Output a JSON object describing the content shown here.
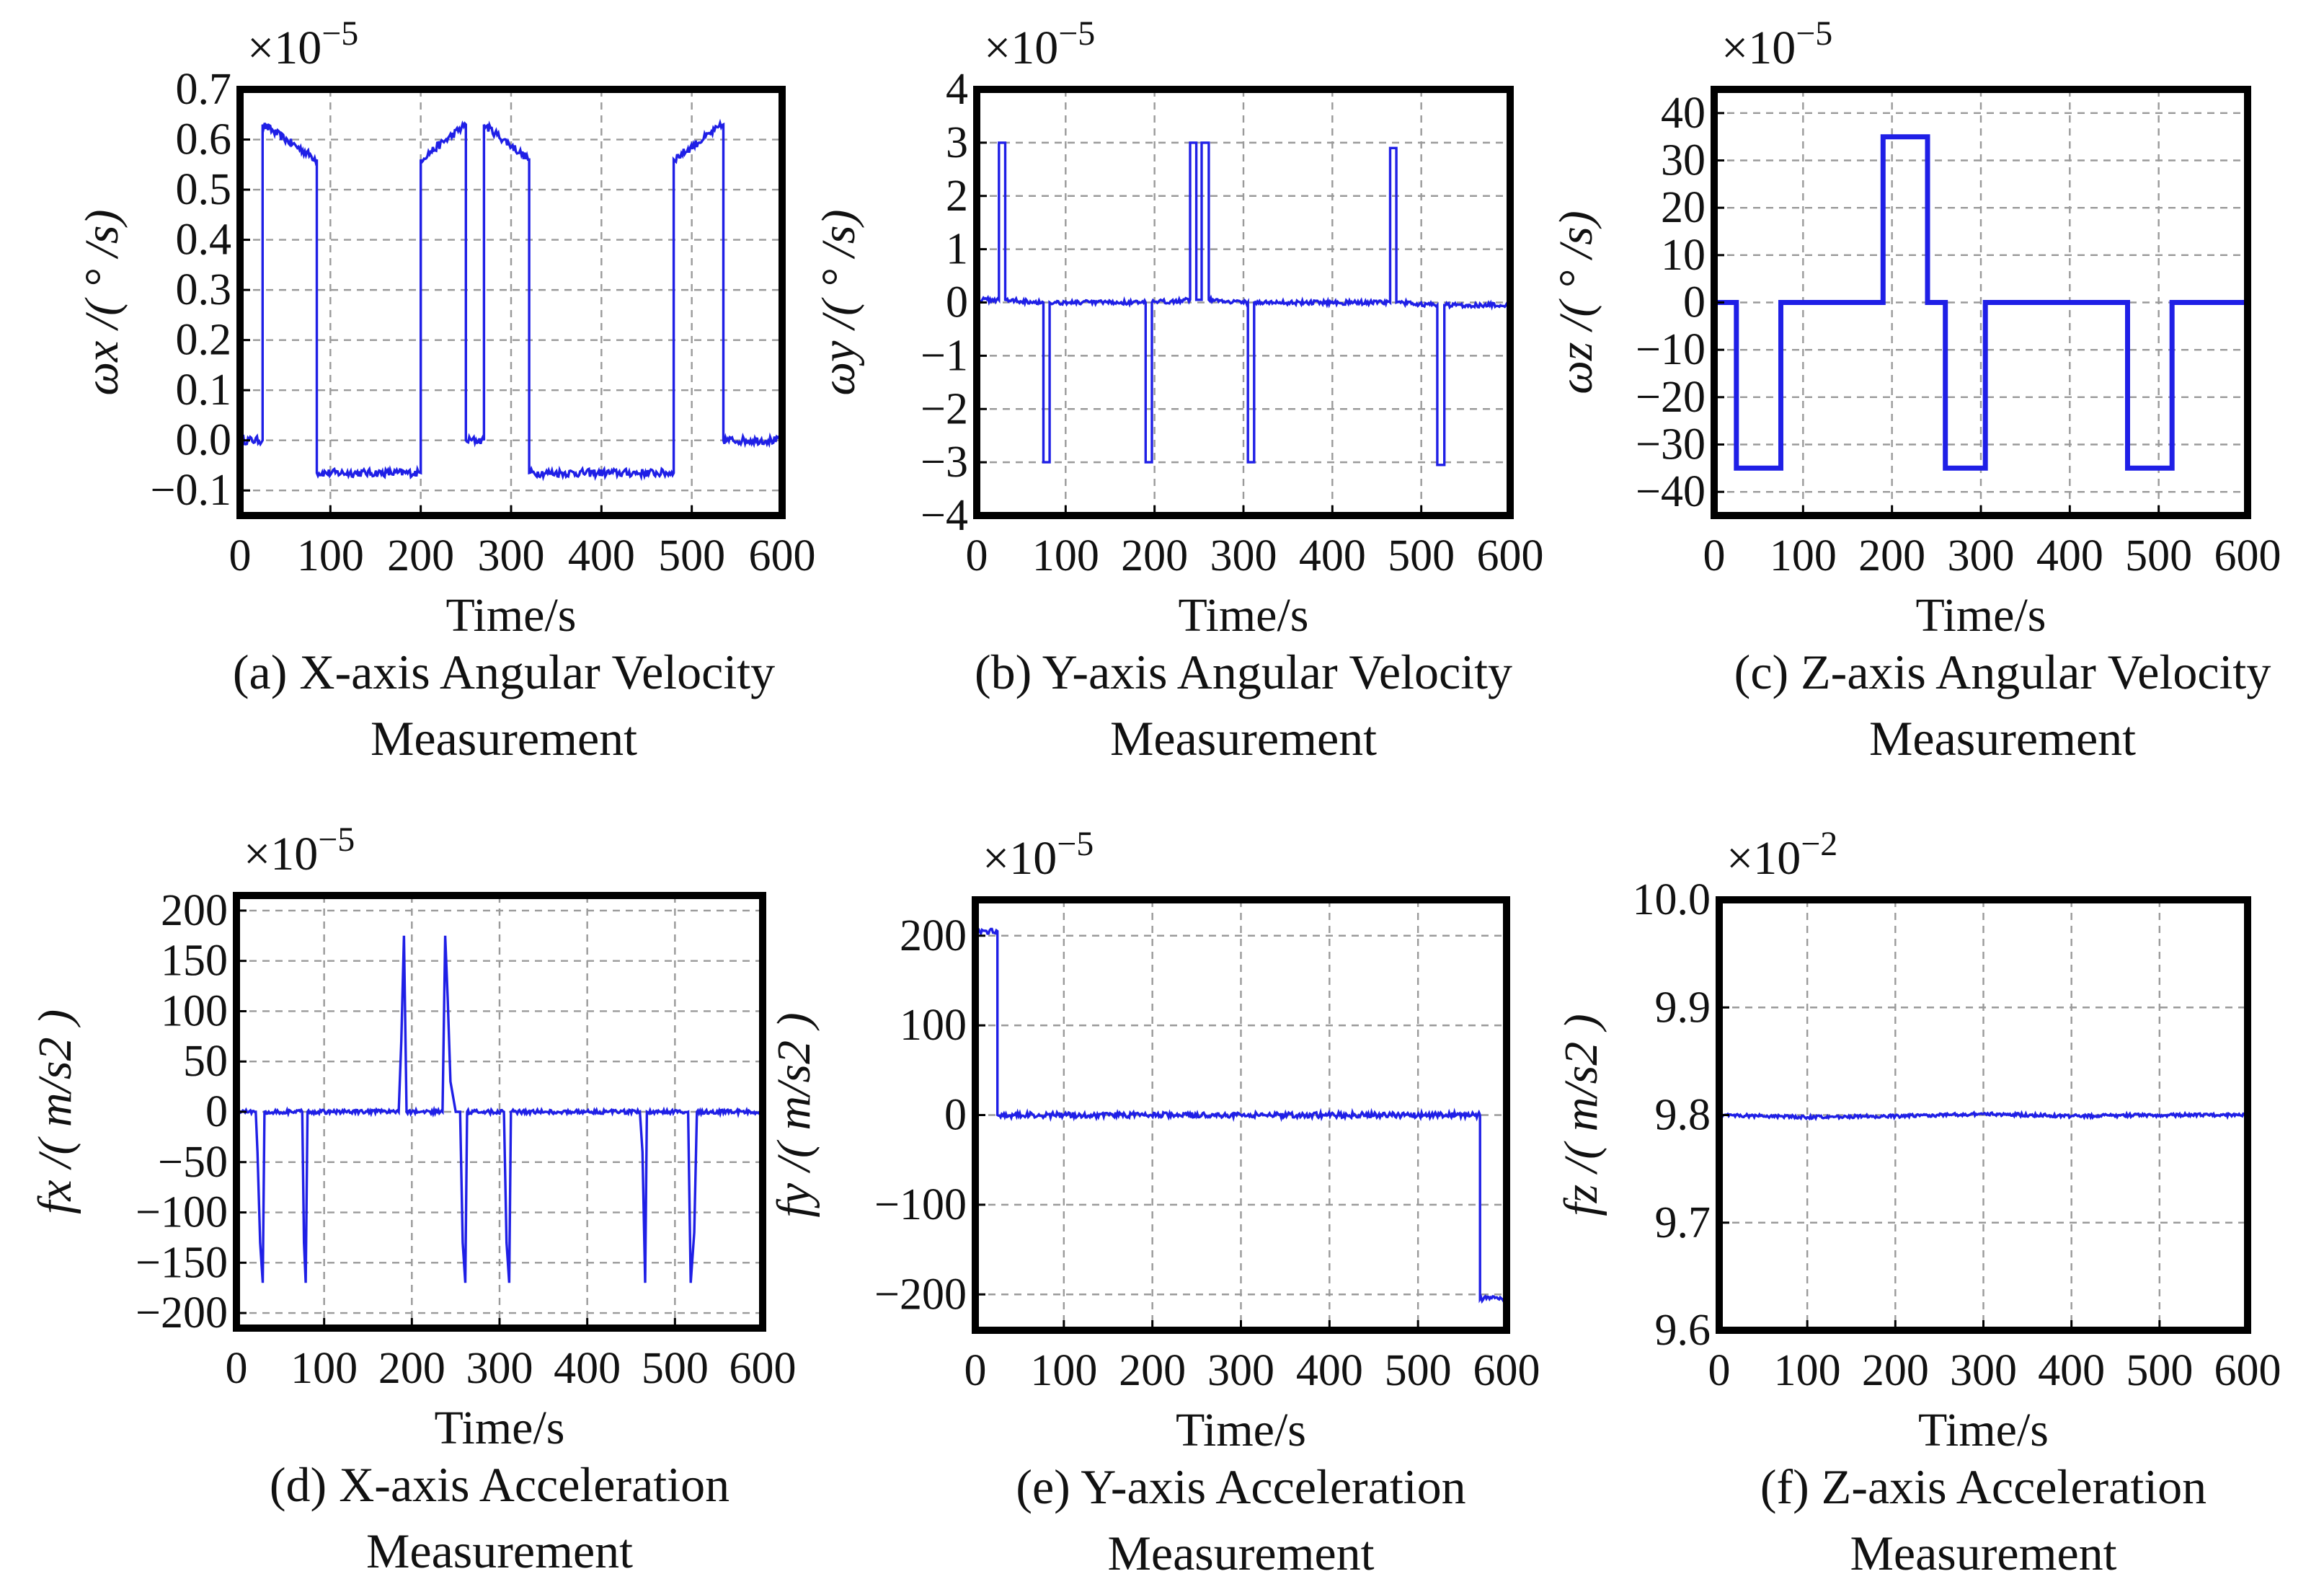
{
  "chart_data": [
    {
      "id": "a",
      "type": "line",
      "caption": [
        "(a) X-axis Angular Velocity",
        "Measurement"
      ],
      "xlabel": "Time/s",
      "ylabel": "ωx /( ° /s)",
      "multiplier": "×10",
      "multiplier_exp": "−5",
      "xlim": [
        0,
        600
      ],
      "ylim": [
        -0.15,
        0.7
      ],
      "xticks": [
        0,
        100,
        200,
        300,
        400,
        500,
        600
      ],
      "xtick_labels": [
        "0",
        "100",
        "200",
        "300",
        "400",
        "500",
        "600"
      ],
      "yticks": [
        -0.1,
        0.0,
        0.1,
        0.2,
        0.3,
        0.4,
        0.5,
        0.6,
        0.7
      ],
      "ytick_labels": [
        "−0.1",
        "0.0",
        "0.1",
        "0.2",
        "0.3",
        "0.4",
        "0.5",
        "0.6",
        "0.7"
      ],
      "series": [
        {
          "name": "ωx",
          "points": [
            [
              0,
              0.0
            ],
            [
              25,
              0.0
            ],
            [
              25,
              0.63
            ],
            [
              85,
              0.56
            ],
            [
              85,
              -0.065
            ],
            [
              200,
              -0.065
            ],
            [
              200,
              0.56
            ],
            [
              250,
              0.63
            ],
            [
              250,
              0.0
            ],
            [
              270,
              0.0
            ],
            [
              270,
              0.63
            ],
            [
              320,
              0.56
            ],
            [
              320,
              -0.065
            ],
            [
              480,
              -0.065
            ],
            [
              480,
              0.56
            ],
            [
              535,
              0.63
            ],
            [
              535,
              0.0
            ],
            [
              600,
              0.0
            ]
          ]
        }
      ]
    },
    {
      "id": "b",
      "type": "line",
      "caption": [
        "(b) Y-axis Angular Velocity",
        "Measurement"
      ],
      "xlabel": "Time/s",
      "ylabel": "ωy /( ° /s)",
      "multiplier": "×10",
      "multiplier_exp": "−5",
      "xlim": [
        0,
        600
      ],
      "ylim": [
        -4,
        4
      ],
      "xticks": [
        0,
        100,
        200,
        300,
        400,
        500,
        600
      ],
      "xtick_labels": [
        "0",
        "100",
        "200",
        "300",
        "400",
        "500",
        "600"
      ],
      "yticks": [
        -4,
        -3,
        -2,
        -1,
        0,
        1,
        2,
        3,
        4
      ],
      "ytick_labels": [
        "−4",
        "−3",
        "−2",
        "−1",
        "0",
        "1",
        "2",
        "3",
        "4"
      ],
      "series": [
        {
          "name": "ωy",
          "points": [
            [
              0,
              0.05
            ],
            [
              25,
              0.05
            ],
            [
              25,
              3.0
            ],
            [
              32,
              3.0
            ],
            [
              32,
              0.05
            ],
            [
              75,
              0.0
            ],
            [
              75,
              -3.0
            ],
            [
              82,
              -3.0
            ],
            [
              82,
              0.0
            ],
            [
              190,
              0.0
            ],
            [
              190,
              -3.0
            ],
            [
              197,
              -3.0
            ],
            [
              197,
              0.0
            ],
            [
              240,
              0.05
            ],
            [
              240,
              3.0
            ],
            [
              247,
              3.0
            ],
            [
              247,
              0.05
            ],
            [
              253,
              0.05
            ],
            [
              253,
              3.0
            ],
            [
              261,
              3.0
            ],
            [
              261,
              0.05
            ],
            [
              305,
              0.0
            ],
            [
              305,
              -3.0
            ],
            [
              312,
              -3.0
            ],
            [
              312,
              0.0
            ],
            [
              465,
              0.0
            ],
            [
              465,
              2.9
            ],
            [
              472,
              2.9
            ],
            [
              472,
              0.0
            ],
            [
              518,
              -0.05
            ],
            [
              518,
              -3.05
            ],
            [
              526,
              -3.05
            ],
            [
              526,
              -0.05
            ],
            [
              600,
              -0.05
            ]
          ]
        }
      ]
    },
    {
      "id": "c",
      "type": "line",
      "caption": [
        "(c) Z-axis Angular Velocity",
        "Measurement"
      ],
      "xlabel": "Time/s",
      "ylabel": "ωz /( ° /s)",
      "multiplier": "×10",
      "multiplier_exp": "−5",
      "xlim": [
        0,
        600
      ],
      "ylim": [
        -45,
        45
      ],
      "xticks": [
        0,
        100,
        200,
        300,
        400,
        500,
        600
      ],
      "xtick_labels": [
        "0",
        "100",
        "200",
        "300",
        "400",
        "500",
        "600"
      ],
      "yticks": [
        -40,
        -30,
        -20,
        -10,
        0,
        10,
        20,
        30,
        40
      ],
      "ytick_labels": [
        "−40",
        "−30",
        "−20",
        "−10",
        "0",
        "10",
        "20",
        "30",
        "40"
      ],
      "series": [
        {
          "name": "ωz",
          "points": [
            [
              0,
              0
            ],
            [
              25,
              0
            ],
            [
              25,
              -35
            ],
            [
              75,
              -35
            ],
            [
              75,
              0
            ],
            [
              190,
              0
            ],
            [
              190,
              35
            ],
            [
              240,
              35
            ],
            [
              240,
              0
            ],
            [
              260,
              0
            ],
            [
              260,
              -35
            ],
            [
              305,
              -35
            ],
            [
              305,
              0
            ],
            [
              465,
              0
            ],
            [
              465,
              -35
            ],
            [
              515,
              -35
            ],
            [
              515,
              0
            ],
            [
              600,
              0
            ]
          ]
        }
      ]
    },
    {
      "id": "d",
      "type": "line",
      "caption": [
        "(d) X-axis Acceleration",
        "Measurement"
      ],
      "xlabel": "Time/s",
      "ylabel": "fx  /( m/s2 )",
      "multiplier": "×10",
      "multiplier_exp": "−5",
      "xlim": [
        0,
        600
      ],
      "ylim": [
        -215,
        215
      ],
      "xticks": [
        0,
        100,
        200,
        300,
        400,
        500,
        600
      ],
      "xtick_labels": [
        "0",
        "100",
        "200",
        "300",
        "400",
        "500",
        "600"
      ],
      "yticks": [
        -200,
        -150,
        -100,
        -50,
        0,
        50,
        100,
        150,
        200
      ],
      "ytick_labels": [
        "−200",
        "−150",
        "−100",
        "−50",
        "0",
        "50",
        "100",
        "150",
        "200"
      ],
      "series": [
        {
          "name": "fx",
          "points": [
            [
              0,
              0
            ],
            [
              22,
              0
            ],
            [
              24,
              -40
            ],
            [
              27,
              -130
            ],
            [
              30,
              -170
            ],
            [
              32,
              0
            ],
            [
              75,
              0
            ],
            [
              77,
              -130
            ],
            [
              79,
              -170
            ],
            [
              81,
              0
            ],
            [
              185,
              0
            ],
            [
              188,
              70
            ],
            [
              191,
              175
            ],
            [
              194,
              0
            ],
            [
              235,
              0
            ],
            [
              238,
              175
            ],
            [
              241,
              110
            ],
            [
              244,
              30
            ],
            [
              250,
              0
            ],
            [
              255,
              0
            ],
            [
              258,
              -130
            ],
            [
              261,
              -170
            ],
            [
              263,
              0
            ],
            [
              305,
              0
            ],
            [
              308,
              -130
            ],
            [
              311,
              -170
            ],
            [
              313,
              0
            ],
            [
              460,
              0
            ],
            [
              463,
              -40
            ],
            [
              466,
              -170
            ],
            [
              468,
              0
            ],
            [
              515,
              0
            ],
            [
              518,
              -170
            ],
            [
              522,
              -120
            ],
            [
              525,
              0
            ],
            [
              600,
              0
            ]
          ]
        }
      ]
    },
    {
      "id": "e",
      "type": "line",
      "caption": [
        "(e) Y-axis Acceleration",
        "Measurement"
      ],
      "xlabel": "Time/s",
      "ylabel": "fy  /( m/s2 )",
      "multiplier": "×10",
      "multiplier_exp": "−5",
      "xlim": [
        0,
        600
      ],
      "ylim": [
        -240,
        240
      ],
      "xticks": [
        0,
        100,
        200,
        300,
        400,
        500,
        600
      ],
      "xtick_labels": [
        "0",
        "100",
        "200",
        "300",
        "400",
        "500",
        "600"
      ],
      "yticks": [
        -200,
        -100,
        0,
        100,
        200
      ],
      "ytick_labels": [
        "−200",
        "−100",
        "0",
        "100",
        "200"
      ],
      "series": [
        {
          "name": "fy",
          "points": [
            [
              0,
              205
            ],
            [
              25,
              205
            ],
            [
              25,
              0
            ],
            [
              570,
              0
            ],
            [
              570,
              -205
            ],
            [
              600,
              -205
            ]
          ]
        }
      ]
    },
    {
      "id": "f",
      "type": "line",
      "caption": [
        "(f) Z-axis Acceleration",
        "Measurement"
      ],
      "xlabel": "Time/s",
      "ylabel": "fz  /( m/s2 )",
      "multiplier": "×10",
      "multiplier_exp": "−2",
      "xlim": [
        0,
        600
      ],
      "ylim": [
        9.6,
        10.0
      ],
      "xticks": [
        0,
        100,
        200,
        300,
        400,
        500,
        600
      ],
      "xtick_labels": [
        "0",
        "100",
        "200",
        "300",
        "400",
        "500",
        "600"
      ],
      "yticks": [
        9.6,
        9.7,
        9.8,
        9.9,
        10.0
      ],
      "ytick_labels": [
        "9.6",
        "9.7",
        "9.8",
        "9.9",
        "10.0"
      ],
      "series": [
        {
          "name": "fz",
          "points": [
            [
              0,
              9.8
            ],
            [
              100,
              9.798
            ],
            [
              200,
              9.799
            ],
            [
              300,
              9.801
            ],
            [
              400,
              9.799
            ],
            [
              500,
              9.8
            ],
            [
              600,
              9.8
            ]
          ]
        }
      ]
    }
  ]
}
